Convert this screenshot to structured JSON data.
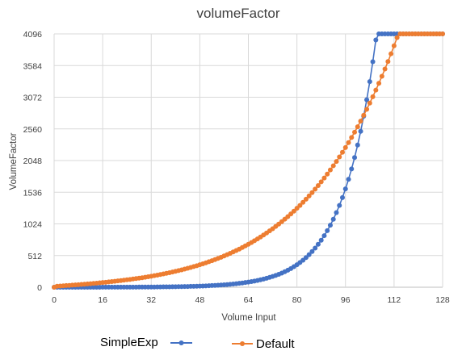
{
  "chart_data": {
    "type": "line",
    "title": "volumeFactor",
    "xlabel": "Volume Input",
    "ylabel": "VolumeFactor",
    "xlim": [
      0,
      128
    ],
    "ylim": [
      0,
      4096
    ],
    "xticks": [
      "0",
      "16",
      "32",
      "48",
      "64",
      "80",
      "96",
      "112",
      "128"
    ],
    "yticks": [
      "0",
      "512",
      "1024",
      "1536",
      "2048",
      "2560",
      "3072",
      "3584",
      "4096"
    ],
    "grid": true,
    "legend_position": "bottom",
    "x": [
      0,
      1,
      2,
      3,
      4,
      5,
      6,
      7,
      8,
      9,
      10,
      11,
      12,
      13,
      14,
      15,
      16,
      17,
      18,
      19,
      20,
      21,
      22,
      23,
      24,
      25,
      26,
      27,
      28,
      29,
      30,
      31,
      32,
      33,
      34,
      35,
      36,
      37,
      38,
      39,
      40,
      41,
      42,
      43,
      44,
      45,
      46,
      47,
      48,
      49,
      50,
      51,
      52,
      53,
      54,
      55,
      56,
      57,
      58,
      59,
      60,
      61,
      62,
      63,
      64,
      65,
      66,
      67,
      68,
      69,
      70,
      71,
      72,
      73,
      74,
      75,
      76,
      77,
      78,
      79,
      80,
      81,
      82,
      83,
      84,
      85,
      86,
      87,
      88,
      89,
      90,
      91,
      92,
      93,
      94,
      95,
      96,
      97,
      98,
      99,
      100,
      101,
      102,
      103,
      104,
      105,
      106,
      107,
      108,
      109,
      110,
      111,
      112,
      113,
      114,
      115,
      116,
      117,
      118,
      119,
      120,
      121,
      122,
      123,
      124,
      125,
      126,
      127,
      128
    ],
    "series": [
      {
        "name": "SimpleExp",
        "color": "#4472c4",
        "values": [
          0,
          0,
          0,
          0,
          0,
          0,
          0,
          0,
          0,
          0,
          0,
          0,
          0,
          0,
          0,
          0,
          1,
          1,
          1,
          1,
          1,
          1,
          1,
          2,
          2,
          2,
          2,
          2,
          3,
          3,
          3,
          4,
          4,
          4,
          5,
          5,
          6,
          6,
          7,
          8,
          8,
          9,
          10,
          11,
          12,
          14,
          15,
          17,
          18,
          20,
          22,
          24,
          27,
          29,
          32,
          36,
          39,
          43,
          47,
          52,
          57,
          63,
          69,
          76,
          83,
          91,
          100,
          109,
          120,
          132,
          145,
          159,
          174,
          191,
          209,
          229,
          251,
          276,
          302,
          332,
          364,
          399,
          437,
          480,
          526,
          577,
          632,
          694,
          760,
          834,
          914,
          1003,
          1099,
          1206,
          1322,
          1450,
          1590,
          1744,
          1912,
          2097,
          2299,
          2521,
          2765,
          3032,
          3325,
          3646,
          3998,
          4096,
          4096,
          4096,
          4096,
          4096,
          4096,
          4096,
          4096,
          4096,
          4096,
          4096,
          4096,
          4096,
          4096,
          4096,
          4096,
          4096,
          4096,
          4096,
          4096,
          4096,
          4096
        ]
      },
      {
        "name": "Default",
        "color": "#ed7d31",
        "values": [
          0,
          17,
          20,
          23,
          27,
          30,
          34,
          37,
          41,
          45,
          49,
          53,
          57,
          62,
          66,
          71,
          76,
          80,
          86,
          91,
          96,
          102,
          108,
          114,
          120,
          126,
          133,
          140,
          147,
          154,
          162,
          170,
          178,
          187,
          196,
          205,
          215,
          225,
          235,
          246,
          257,
          269,
          281,
          293,
          306,
          320,
          334,
          348,
          363,
          379,
          395,
          412,
          429,
          447,
          466,
          485,
          505,
          526,
          548,
          570,
          593,
          617,
          642,
          668,
          695,
          723,
          752,
          781,
          812,
          844,
          877,
          911,
          946,
          983,
          1021,
          1060,
          1100,
          1142,
          1185,
          1230,
          1276,
          1323,
          1373,
          1424,
          1476,
          1530,
          1586,
          1644,
          1704,
          1766,
          1830,
          1896,
          1964,
          2034,
          2107,
          2182,
          2259,
          2339,
          2422,
          2507,
          2595,
          2686,
          2780,
          2877,
          2977,
          3080,
          3187,
          3297,
          3411,
          3528,
          3649,
          3774,
          3903,
          4036,
          4096,
          4096,
          4096,
          4096,
          4096,
          4096,
          4096,
          4096,
          4096,
          4096,
          4096,
          4096,
          4096,
          4096,
          4096
        ]
      }
    ]
  }
}
